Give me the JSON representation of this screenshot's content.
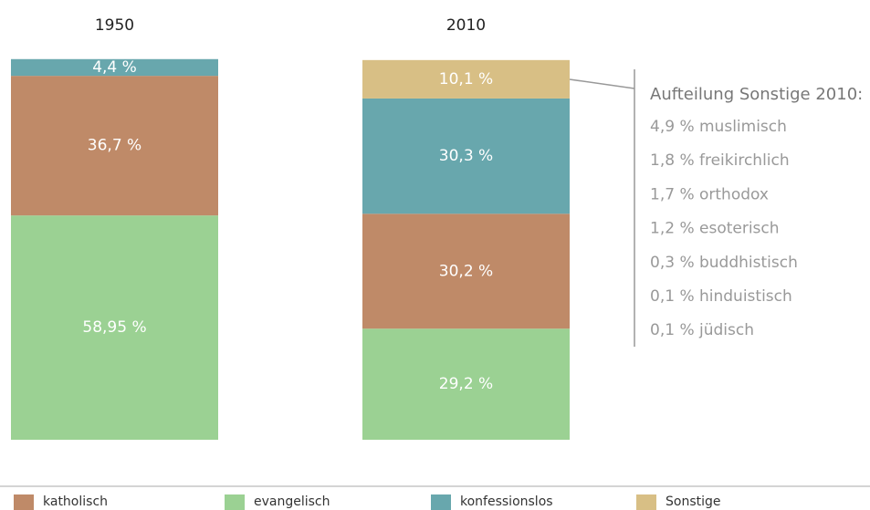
{
  "chart_data": {
    "type": "stacked-bar",
    "categories": [
      "1950",
      "2010"
    ],
    "series": [
      {
        "name": "katholisch",
        "color": "#bf8a68",
        "values": [
          36.7,
          30.2
        ],
        "value_labels": [
          "36,7 %",
          "30,2 %"
        ]
      },
      {
        "name": "evangelisch",
        "color": "#9bd193",
        "values": [
          58.95,
          29.2
        ],
        "value_labels": [
          "58,95 %",
          "29,2 %"
        ]
      },
      {
        "name": "konfessionslos",
        "color": "#68a7ad",
        "values": [
          4.4,
          30.3
        ],
        "value_labels": [
          "4,4 %",
          "30,3 %"
        ]
      },
      {
        "name": "Sonstige",
        "color": "#d8bf85",
        "values": [
          null,
          10.1
        ],
        "value_labels": [
          null,
          "10,1 %"
        ]
      }
    ],
    "ylim": [
      0,
      100
    ],
    "annotation": {
      "title": "Aufteilung Sonstige 2010:",
      "items": [
        "4,9 % muslimisch",
        "1,8 % freikirchlich",
        "1,7 % orthodox",
        "1,2 % esoterisch",
        "0,3 % buddhistisch",
        "0,1 % hinduistisch",
        "0,1 % jüdisch"
      ]
    }
  }
}
